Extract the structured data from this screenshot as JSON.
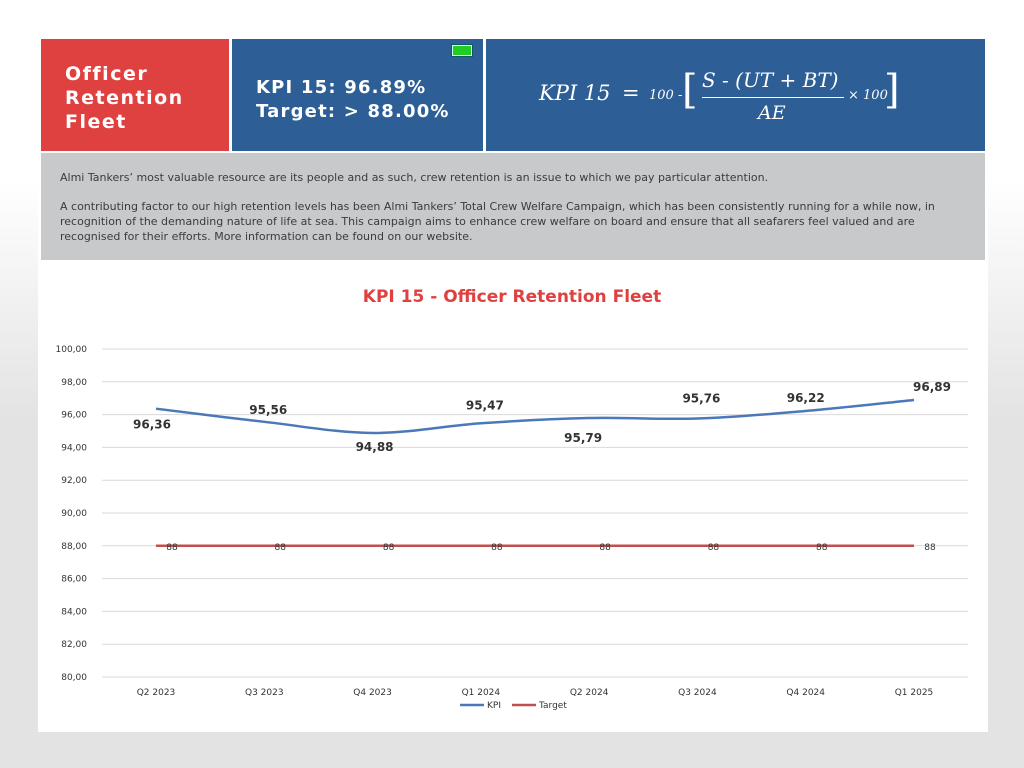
{
  "header": {
    "title_lines": [
      "Officer",
      "Retention",
      "Fleet"
    ],
    "kpi_line": "KPI 15: 96.89%",
    "target_line": "Target: > 88.00%",
    "formula": {
      "lhs": "KPI  15",
      "eq": "=",
      "hundred": "100 -",
      "open_bracket": "[",
      "numerator": "S - (UT + BT)",
      "denominator": "AE",
      "times": "× 100",
      "close_bracket": "]"
    },
    "battery_color": "#22cc22"
  },
  "description": {
    "p1": "Almi Tankers’ most valuable resource are its people and as such, crew retention is an issue to which we pay particular attention.",
    "p2": "A contributing factor to our high retention levels has been Almi Tankers’ Total Crew Welfare Campaign, which has been consistently running for a while now, in recognition of the demanding nature of life at sea. This campaign aims to enhance crew welfare on board and ensure that all seafarers feel valued and are recognised for their efforts. More information can be found on our website."
  },
  "colors": {
    "accent_red": "#df4140",
    "tile_blue": "#2d5f96",
    "kpi_line": "#4a78b8",
    "target_line": "#c0504d"
  },
  "chart_data": {
    "type": "line",
    "title": "KPI 15 - Officer Retention Fleet",
    "categories": [
      "Q2 2023",
      "Q3 2023",
      "Q4 2023",
      "Q1 2024",
      "Q2 2024",
      "Q3 2024",
      "Q4 2024",
      "Q1 2025"
    ],
    "series": [
      {
        "name": "KPI",
        "values": [
          96.36,
          95.56,
          94.88,
          95.47,
          95.79,
          95.76,
          96.22,
          96.89
        ],
        "labels": [
          "96,36",
          "95,56",
          "94,88",
          "95,47",
          "95,79",
          "95,76",
          "96,22",
          "96,89"
        ],
        "color": "#4a78b8",
        "smooth": true
      },
      {
        "name": "Target",
        "values": [
          88,
          88,
          88,
          88,
          88,
          88,
          88,
          88
        ],
        "labels": [
          "88",
          "88",
          "88",
          "88",
          "88",
          "88",
          "88",
          "88"
        ],
        "color": "#c0504d"
      }
    ],
    "y_ticks": [
      "80,00",
      "82,00",
      "84,00",
      "86,00",
      "88,00",
      "90,00",
      "92,00",
      "94,00",
      "96,00",
      "98,00",
      "100,00"
    ],
    "ylim": [
      80,
      100
    ],
    "grid": true,
    "legend": "bottom"
  }
}
